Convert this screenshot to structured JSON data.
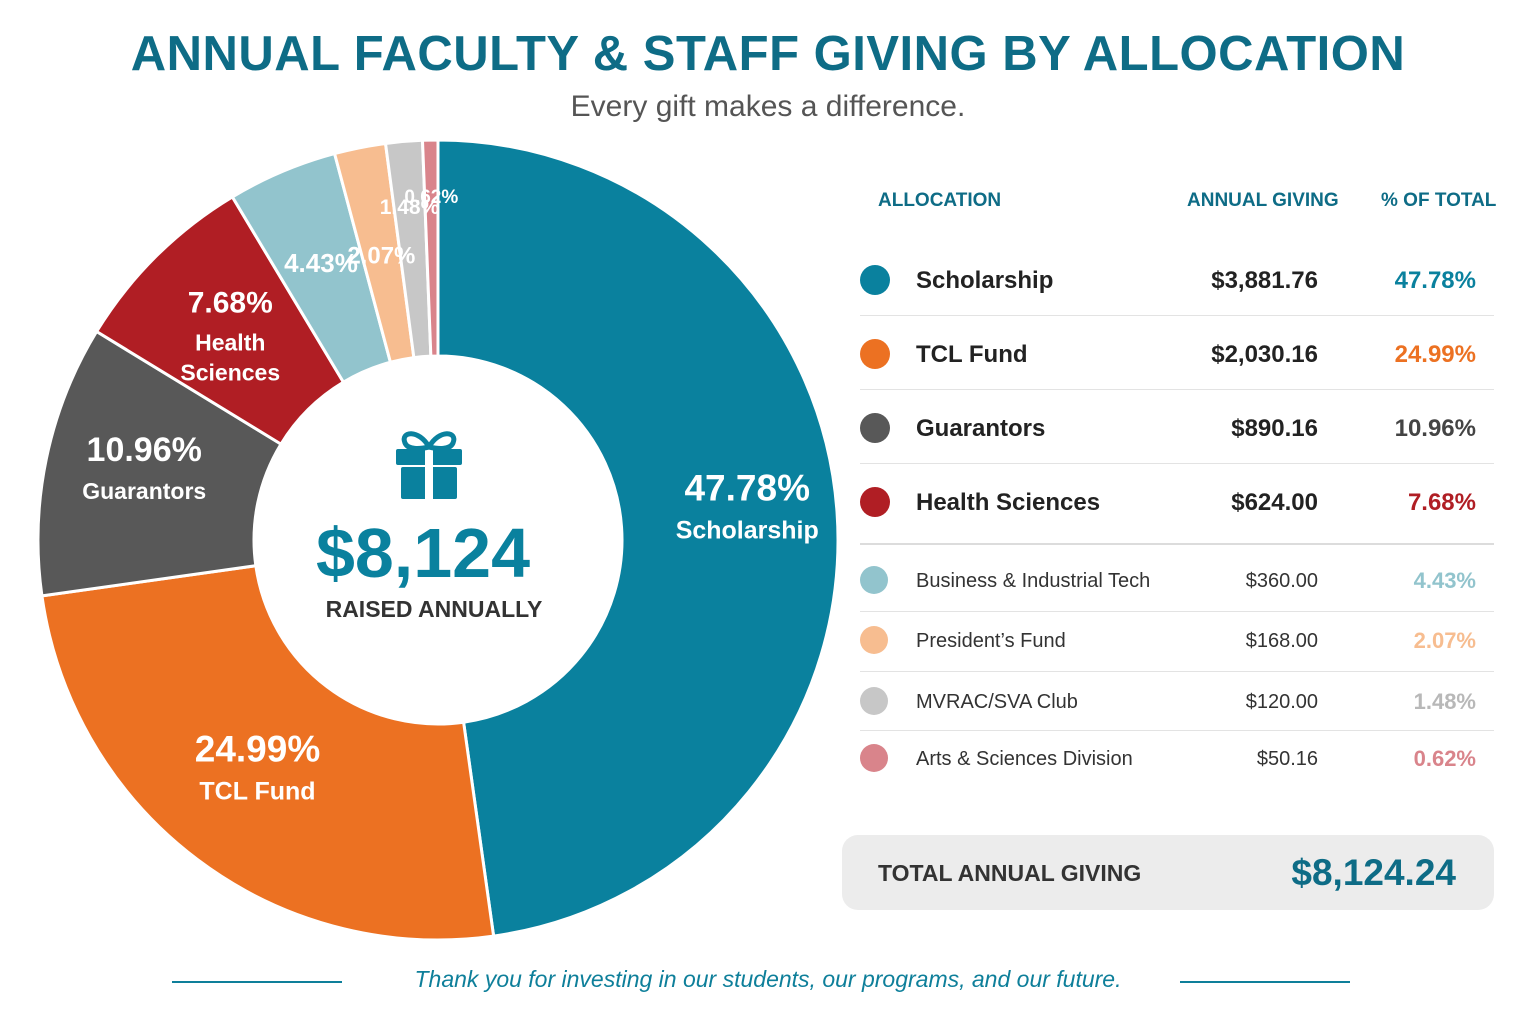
{
  "header": {
    "title": "ANNUAL FACULTY & STAFF GIVING BY ALLOCATION",
    "subtitle": "Every gift makes a difference."
  },
  "center": {
    "amount": "$8,124",
    "caption": "RAISED ANNUALLY",
    "icon": "gift-icon"
  },
  "table": {
    "headers": {
      "allocation": "ALLOCATION",
      "giving": "ANNUAL GIVING",
      "percent": "% OF TOTAL"
    },
    "rows": [
      {
        "name": "Scholarship",
        "amount": "$3,881.76",
        "percent": "47.78%"
      },
      {
        "name": "TCL Fund",
        "amount": "$2,030.16",
        "percent": "24.99%"
      },
      {
        "name": "Guarantors",
        "amount": "$890.16",
        "percent": "10.96%"
      },
      {
        "name": "Health Sciences",
        "amount": "$624.00",
        "percent": "7.68%"
      },
      {
        "name": "Business & Industrial Tech",
        "amount": "$360.00",
        "percent": "4.43%"
      },
      {
        "name": "President’s Fund",
        "amount": "$168.00",
        "percent": "2.07%"
      },
      {
        "name": "MVRAC/SVA Club",
        "amount": "$120.00",
        "percent": "1.48%"
      },
      {
        "name": "Arts & Sciences Division",
        "amount": "$50.16",
        "percent": "0.62%"
      }
    ]
  },
  "total": {
    "label": "TOTAL ANNUAL GIVING",
    "value": "$8,124.24"
  },
  "footer": {
    "text": "Thank you for investing in our students, our programs, and our future."
  },
  "chart_data": {
    "type": "pie",
    "title": "ANNUAL FACULTY & STAFF GIVING BY ALLOCATION",
    "subtitle": "Every gift makes a difference.",
    "categories": [
      "Scholarship",
      "TCL Fund",
      "Guarantors",
      "Health Sciences",
      "Business & Industrial Tech",
      "President’s Fund",
      "MVRAC/SVA Club",
      "Arts & Sciences Division"
    ],
    "values": [
      3881.76,
      2030.16,
      890.16,
      624.0,
      360.0,
      168.0,
      120.0,
      50.16
    ],
    "percents": [
      47.78,
      24.99,
      10.96,
      7.68,
      4.43,
      2.07,
      1.48,
      0.62
    ],
    "slice_labels": [
      "47.78%",
      "24.99%",
      "10.96%",
      "7.68%",
      "4.43%",
      "2.07%",
      "1.48%",
      "0.62%"
    ],
    "slice_names": [
      "Scholarship",
      "TCL Fund",
      "Guarantors",
      "Health Sciences",
      "",
      "",
      "",
      ""
    ],
    "colors": [
      "#0a819e",
      "#ec7122",
      "#585858",
      "#b01e24",
      "#92c4cd",
      "#f7bd90",
      "#c7c7c7",
      "#d9848b"
    ],
    "pct_colors": [
      "#0a819e",
      "#ec7122",
      "#444444",
      "#b01e24",
      "#92c4cd",
      "#f7bd90",
      "#b8b8b8",
      "#d9848b"
    ],
    "donut": true,
    "legend": "right"
  }
}
